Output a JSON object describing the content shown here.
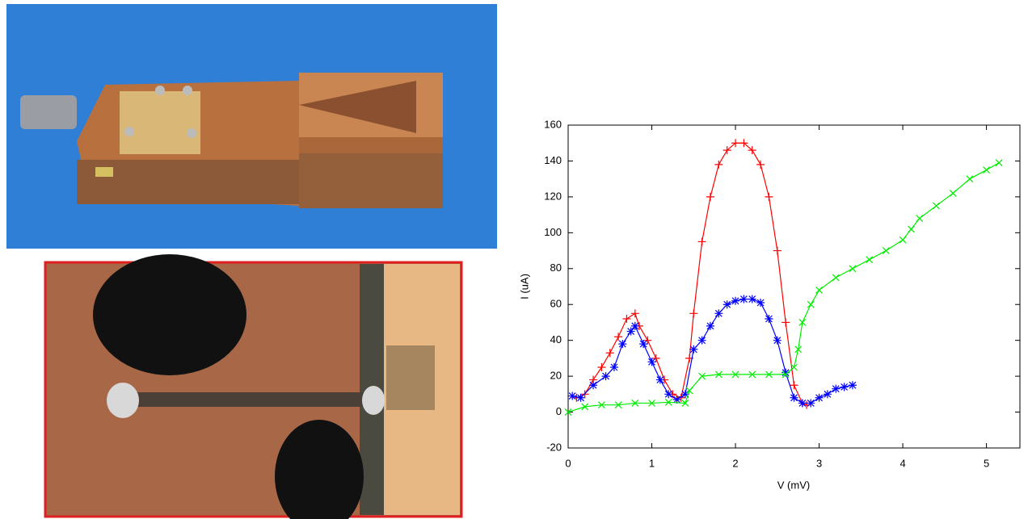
{
  "chart_data": {
    "type": "line",
    "xlabel": "V (mV)",
    "ylabel": "I (uA)",
    "xlim": [
      0,
      5.4
    ],
    "xticks": [
      0,
      1,
      2,
      3,
      4,
      5
    ],
    "ylim": [
      -20,
      160
    ],
    "yticks": [
      -20,
      0,
      20,
      40,
      60,
      80,
      100,
      120,
      140,
      160
    ],
    "series": [
      {
        "color": "#ff0000",
        "marker": "plus",
        "x": [
          0.1,
          0.2,
          0.3,
          0.4,
          0.5,
          0.6,
          0.7,
          0.8,
          0.85,
          0.95,
          1.05,
          1.15,
          1.25,
          1.35,
          1.45,
          1.5,
          1.6,
          1.7,
          1.8,
          1.9,
          2.0,
          2.1,
          2.2,
          2.3,
          2.4,
          2.5,
          2.6,
          2.7,
          2.8,
          2.85
        ],
        "values": [
          8,
          10,
          18,
          25,
          33,
          42,
          52,
          55,
          48,
          40,
          30,
          18,
          10,
          8,
          30,
          55,
          95,
          120,
          138,
          146,
          150,
          150,
          146,
          138,
          120,
          90,
          50,
          15,
          5,
          4
        ]
      },
      {
        "color": "#0000ff",
        "marker": "star",
        "x": [
          0.05,
          0.15,
          0.3,
          0.45,
          0.55,
          0.65,
          0.75,
          0.8,
          0.9,
          1.0,
          1.1,
          1.2,
          1.3,
          1.4,
          1.5,
          1.6,
          1.7,
          1.8,
          1.9,
          2.0,
          2.1,
          2.2,
          2.3,
          2.4,
          2.5,
          2.6,
          2.7,
          2.8,
          2.9,
          3.0,
          3.1,
          3.2,
          3.3,
          3.4
        ],
        "values": [
          9,
          8,
          15,
          20,
          25,
          38,
          45,
          48,
          38,
          28,
          18,
          10,
          7,
          10,
          35,
          40,
          48,
          55,
          60,
          62,
          63,
          63,
          61,
          52,
          40,
          22,
          8,
          5,
          5,
          8,
          10,
          13,
          14,
          15
        ]
      },
      {
        "color": "#00ee00",
        "marker": "cross",
        "x": [
          0,
          0.2,
          0.4,
          0.6,
          0.8,
          1.0,
          1.2,
          1.4,
          1.45,
          1.6,
          1.8,
          2.0,
          2.2,
          2.4,
          2.6,
          2.7,
          2.75,
          2.8,
          2.9,
          3.0,
          3.2,
          3.4,
          3.6,
          3.8,
          4.0,
          4.1,
          4.2,
          4.4,
          4.6,
          4.8,
          5.0,
          5.15
        ],
        "values": [
          0,
          3,
          4,
          4,
          5,
          5,
          5.5,
          5,
          12,
          20,
          21,
          21,
          21,
          21,
          21,
          25,
          35,
          50,
          60,
          68,
          75,
          80,
          85,
          90,
          96,
          102,
          108,
          115,
          122,
          130,
          135,
          139
        ]
      }
    ]
  }
}
